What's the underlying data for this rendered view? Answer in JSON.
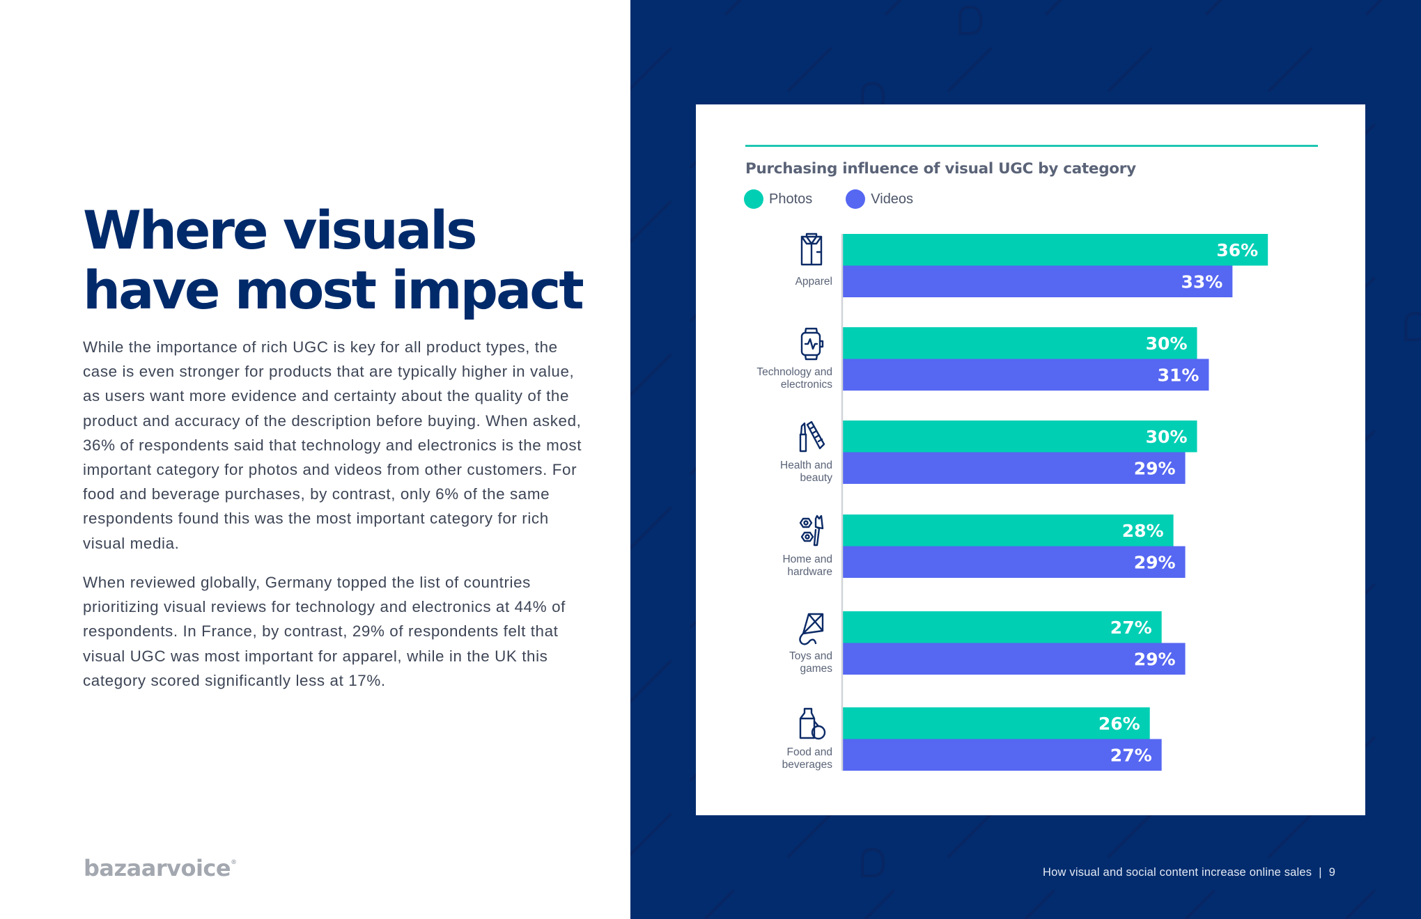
{
  "page": {
    "headline_line1": "Where visuals",
    "headline_line2": "have most impact",
    "paragraphs": [
      "While the importance of rich UGC is key for all product types, the case is even stronger for products that are typically higher in value, as users want more evidence and certainty about the quality of the product and accuracy of the description before buying. When asked, 36% of respondents said that technology and electronics is the most important category for photos and videos from other customers. For food and beverage purchases, by contrast, only 6% of the same respondents found this was the most important category for rich visual media.",
      "When reviewed globally, Germany topped the list of countries prioritizing visual reviews for technology and electronics at 44% of respondents. In France, by contrast, 29% of respondents felt that visual UGC was most important for apparel, while in the UK this category scored significantly less at 17%."
    ],
    "logo_text": "bazaarvoice",
    "logo_mark": "®",
    "footer_title": "How visual and social content increase online sales",
    "footer_separator": "|",
    "page_number": "9"
  },
  "colors": {
    "navy": "#022c6e",
    "headline": "#012a6b",
    "photos": "#00cfb4",
    "videos": "#5667f2",
    "accent_rule": "#1fc7b2",
    "icon": "#0b2a66",
    "axis": "#d0d3d8"
  },
  "chart_data": {
    "type": "bar",
    "orientation": "horizontal",
    "title": "Purchasing influence of visual UGC by category",
    "xlabel": "",
    "ylabel": "",
    "xlim": [
      0,
      36
    ],
    "grid": false,
    "legend_position": "top-left",
    "categories": [
      {
        "label_lines": [
          "Apparel"
        ],
        "icon": "shirt-icon"
      },
      {
        "label_lines": [
          "Technology and",
          "electronics"
        ],
        "icon": "smartwatch-icon"
      },
      {
        "label_lines": [
          "Health and",
          "beauty"
        ],
        "icon": "lipstick-comb-icon"
      },
      {
        "label_lines": [
          "Home and",
          "hardware"
        ],
        "icon": "nuts-paintbrush-icon"
      },
      {
        "label_lines": [
          "Toys and",
          "games"
        ],
        "icon": "kite-icon"
      },
      {
        "label_lines": [
          "Food and",
          "beverages"
        ],
        "icon": "milk-apple-icon"
      }
    ],
    "series": [
      {
        "name": "Photos",
        "color": "#00cfb4",
        "values": [
          36,
          30,
          30,
          28,
          27,
          26
        ],
        "labels": [
          "36%",
          "30%",
          "30%",
          "28%",
          "27%",
          "26%"
        ]
      },
      {
        "name": "Videos",
        "color": "#5667f2",
        "values": [
          33,
          31,
          29,
          29,
          29,
          27
        ],
        "labels": [
          "33%",
          "31%",
          "29%",
          "29%",
          "29%",
          "27%"
        ]
      }
    ]
  }
}
